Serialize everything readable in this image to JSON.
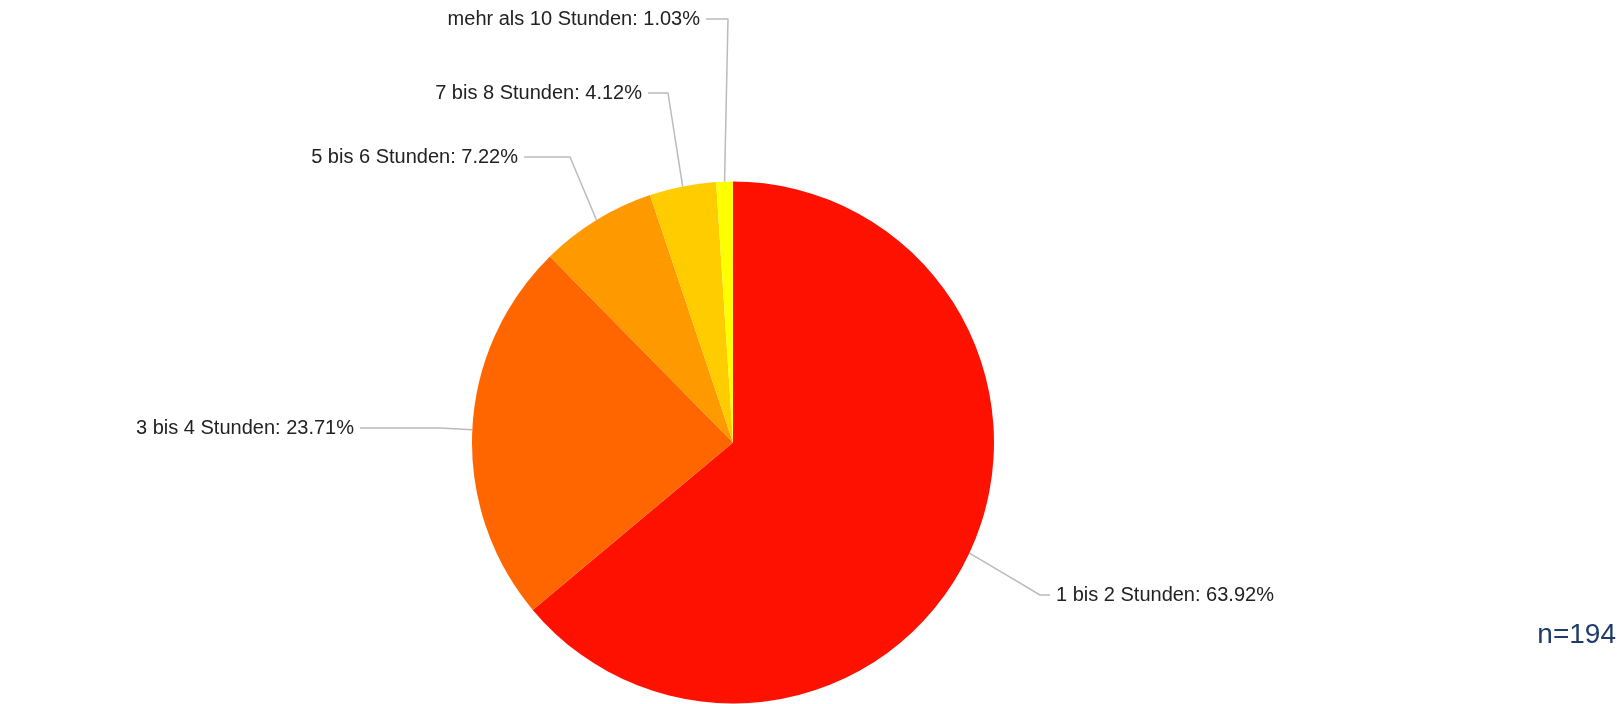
{
  "chart_data": {
    "type": "pie",
    "categories": [
      "1 bis 2 Stunden",
      "3 bis 4 Stunden",
      "5 bis 6 Stunden",
      "7 bis 8 Stunden",
      "mehr als 10 Stunden"
    ],
    "values": [
      63.92,
      23.71,
      7.22,
      4.12,
      1.03
    ],
    "colors": [
      "#ff1100",
      "#ff6600",
      "#ff9900",
      "#ffcc00",
      "#ffff00"
    ],
    "value_labels": [
      "63.92%",
      "23.71%",
      "7.22%",
      "4.12%",
      "1.03%"
    ],
    "legend": false,
    "annotations": [
      "n=194"
    ]
  }
}
